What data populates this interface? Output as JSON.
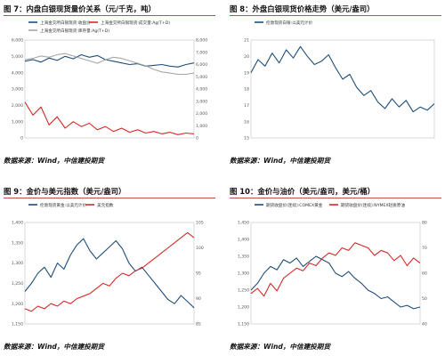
{
  "figures": [
    {
      "title": "图 7：内盘白银现货量价关系（元/千克，吨）",
      "source": "数据来源：Wind，中信建投期货",
      "chart_data": {
        "type": "line",
        "title": "",
        "legend_placement": "top",
        "legend": [
          "上海金交所白银现货:收盘价",
          "上海金交所白银现货:成交量:Ag(T+D)",
          "上海金交所白银现货:库存量:Ag(T+D)"
        ],
        "y_left_ticks": [
          "0",
          "1,000",
          "2,000",
          "3,000",
          "4,000",
          "5,000",
          "6,000"
        ],
        "y_right_ticks": [
          "0",
          "1,000",
          "2,000",
          "3,000",
          "4,000",
          "5,000",
          "6,000",
          "7,000",
          "8,000"
        ],
        "x_ticks": [
          "",
          "",
          "",
          "",
          ""
        ],
        "colors": [
          "#1f4e79",
          "#d62828",
          "#a6a6a6"
        ],
        "series": [
          {
            "name": "上海金交所白银现货:收盘价",
            "axis": "left",
            "values": [
              4700,
              4800,
              4650,
              4900,
              4750,
              5000,
              4850,
              5100,
              4950,
              5050,
              4800,
              4700,
              4600,
              4500,
              4550,
              4400,
              4450,
              4500,
              4400,
              4350,
              4500,
              4600
            ]
          },
          {
            "name": "上海金交所白银现货:成交量:Ag(T+D)",
            "axis": "left",
            "values": [
              2200,
              1400,
              1900,
              800,
              1300,
              600,
              1000,
              700,
              900,
              500,
              700,
              400,
              600,
              350,
              500,
              300,
              400,
              250,
              350,
              200,
              300,
              250
            ]
          },
          {
            "name": "上海金交所白银现货:库存量:Ag(T+D)",
            "axis": "right",
            "values": [
              6400,
              6500,
              6700,
              6600,
              6800,
              6900,
              6700,
              6500,
              6300,
              6100,
              6400,
              6600,
              6500,
              6300,
              6100,
              5900,
              5600,
              5400,
              5300,
              5200,
              5200,
              5300
            ]
          }
        ]
      }
    },
    {
      "title": "图 8：外盘白银现货价格走势（美元/盎司）",
      "source": "数据来源：Wind，中信建投期货",
      "chart_data": {
        "type": "line",
        "title": "",
        "legend_placement": "top",
        "legend": [
          "伦敦现货白银:以美元计价"
        ],
        "y_left_ticks": [
          "15",
          "16",
          "17",
          "18",
          "19",
          "20",
          "21"
        ],
        "x_ticks": [
          "",
          "",
          "",
          ""
        ],
        "colors": [
          "#1f4e79"
        ],
        "series": [
          {
            "name": "伦敦现货白银:以美元计价",
            "axis": "left",
            "values": [
              19.0,
              19.8,
              19.4,
              20.2,
              19.6,
              20.4,
              19.9,
              20.6,
              20.0,
              19.5,
              19.7,
              20.1,
              19.3,
              18.6,
              18.9,
              18.1,
              17.6,
              17.9,
              17.2,
              16.8,
              17.4,
              16.9,
              17.3,
              16.6,
              16.9,
              16.7,
              17.1
            ]
          }
        ]
      }
    },
    {
      "title": "图 9：金价与美元指数（美元/盎司）",
      "source": "数据来源：Wind，中信建投期货",
      "chart_data": {
        "type": "line",
        "title": "",
        "legend_placement": "top",
        "legend": [
          "伦敦现货黄金:以美元计价",
          "美元指数"
        ],
        "y_left_ticks": [
          "1,150",
          "1,200",
          "1,250",
          "1,300",
          "1,350",
          "1,400"
        ],
        "y_right_ticks": [
          "85",
          "90",
          "95",
          "100",
          "105"
        ],
        "x_ticks": [
          "",
          "",
          "",
          "",
          ""
        ],
        "colors": [
          "#1f4e79",
          "#d62828"
        ],
        "series": [
          {
            "name": "伦敦现货黄金:以美元计价",
            "axis": "left",
            "values": [
              1230,
              1250,
              1275,
              1290,
              1265,
              1300,
              1285,
              1320,
              1345,
              1360,
              1330,
              1310,
              1325,
              1340,
              1355,
              1335,
              1300,
              1280,
              1290,
              1270,
              1250,
              1230,
              1210,
              1200,
              1220,
              1205,
              1190
            ]
          },
          {
            "name": "美元指数",
            "axis": "right",
            "values": [
              88,
              87.5,
              88.5,
              88,
              89,
              88.5,
              89.5,
              89,
              90,
              90.5,
              91,
              92,
              93,
              92.5,
              94,
              95,
              94.5,
              95.5,
              96,
              97,
              98,
              99,
              100,
              101,
              102,
              103,
              102
            ]
          }
        ]
      }
    },
    {
      "title": "图 10：金价与油价（美元/盎司，美元/桶）",
      "source": "数据来源：Wind，中信建投期货",
      "chart_data": {
        "type": "line",
        "title": "",
        "legend_placement": "top",
        "legend": [
          "期货收盘价(连续):COMEX黄金",
          "期货收盘价(连续):NYMEX轻质原油"
        ],
        "y_left_ticks": [
          "1,150",
          "1,200",
          "1,250",
          "1,300",
          "1,350",
          "1,400",
          "1,450"
        ],
        "y_right_ticks": [
          "40",
          "50",
          "60",
          "70",
          "80"
        ],
        "x_ticks": [
          "",
          "",
          "",
          ""
        ],
        "colors": [
          "#1f4e79",
          "#d62828"
        ],
        "series": [
          {
            "name": "期货收盘价(连续):COMEX黄金",
            "axis": "left",
            "values": [
              1250,
              1270,
              1300,
              1320,
              1310,
              1340,
              1330,
              1345,
              1320,
              1335,
              1350,
              1340,
              1330,
              1300,
              1290,
              1305,
              1285,
              1270,
              1250,
              1240,
              1225,
              1230,
              1215,
              1200,
              1205,
              1195,
              1200
            ]
          },
          {
            "name": "期货收盘价(连续):NYMEX轻质原油",
            "axis": "right",
            "values": [
              52,
              54,
              51,
              56,
              53,
              58,
              60,
              62,
              61,
              64,
              63,
              66,
              68,
              67,
              70,
              69,
              72,
              71,
              70,
              67,
              69,
              68,
              65,
              67,
              63,
              66,
              64
            ]
          }
        ]
      }
    }
  ]
}
